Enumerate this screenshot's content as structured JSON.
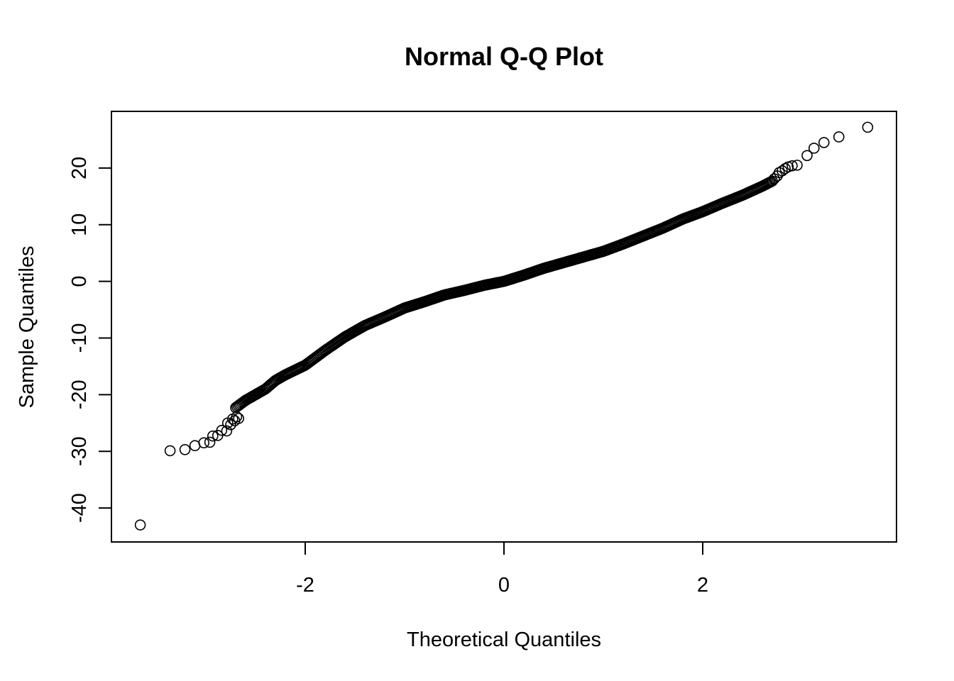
{
  "chart_data": {
    "type": "scatter",
    "title": "Normal Q-Q Plot",
    "xlabel": "Theoretical Quantiles",
    "ylabel": "Sample Quantiles",
    "xlim": [
      -3.95,
      3.95
    ],
    "ylim": [
      -46,
      30
    ],
    "x_ticks": [
      -2,
      0,
      2
    ],
    "x_tick_labels": [
      "-2",
      "0",
      "2"
    ],
    "y_ticks": [
      -40,
      -30,
      -20,
      -10,
      0,
      10,
      20
    ],
    "y_tick_labels": [
      "-40",
      "-30",
      "-20",
      "-10",
      "0",
      "10",
      "20"
    ],
    "grid": false,
    "legend": "none",
    "marker": "open-circle",
    "curve_nodes": {
      "x": [
        -2.7,
        -2.6,
        -2.5,
        -2.4,
        -2.3,
        -2.2,
        -2.0,
        -1.8,
        -1.6,
        -1.4,
        -1.2,
        -1.0,
        -0.8,
        -0.6,
        -0.4,
        -0.2,
        0.0,
        0.2,
        0.4,
        0.6,
        0.8,
        1.0,
        1.2,
        1.4,
        1.6,
        1.8,
        2.0,
        2.2,
        2.4,
        2.5,
        2.6,
        2.7
      ],
      "y": [
        -22.3,
        -21.0,
        -20.0,
        -19.0,
        -17.5,
        -16.5,
        -14.8,
        -12.2,
        -9.8,
        -7.8,
        -6.3,
        -4.7,
        -3.6,
        -2.4,
        -1.6,
        -0.7,
        0.0,
        1.1,
        2.3,
        3.3,
        4.3,
        5.3,
        6.6,
        8.0,
        9.4,
        11.0,
        12.3,
        13.8,
        15.2,
        16.0,
        16.8,
        17.7
      ]
    },
    "tail_points": [
      {
        "x": -3.66,
        "y": -43.0
      },
      {
        "x": -3.36,
        "y": -29.9
      },
      {
        "x": -3.21,
        "y": -29.7
      },
      {
        "x": -3.11,
        "y": -29.0
      },
      {
        "x": -3.02,
        "y": -28.5
      },
      {
        "x": -2.96,
        "y": -28.4
      },
      {
        "x": -2.93,
        "y": -27.3
      },
      {
        "x": -2.88,
        "y": -27.2
      },
      {
        "x": -2.84,
        "y": -26.3
      },
      {
        "x": -2.79,
        "y": -26.4
      },
      {
        "x": -2.78,
        "y": -25.0
      },
      {
        "x": -2.75,
        "y": -25.3
      },
      {
        "x": -2.73,
        "y": -24.3
      },
      {
        "x": -2.71,
        "y": -24.6
      },
      {
        "x": -2.69,
        "y": -23.9
      },
      {
        "x": -2.67,
        "y": -24.2
      },
      {
        "x": 2.72,
        "y": 18.1
      },
      {
        "x": 2.75,
        "y": 18.6
      },
      {
        "x": 2.77,
        "y": 19.2
      },
      {
        "x": 2.8,
        "y": 19.5
      },
      {
        "x": 2.83,
        "y": 19.9
      },
      {
        "x": 2.86,
        "y": 20.2
      },
      {
        "x": 2.9,
        "y": 20.4
      },
      {
        "x": 2.95,
        "y": 20.5
      },
      {
        "x": 3.05,
        "y": 22.2
      },
      {
        "x": 3.12,
        "y": 23.5
      },
      {
        "x": 3.22,
        "y": 24.5
      },
      {
        "x": 3.37,
        "y": 25.5
      },
      {
        "x": 3.66,
        "y": 27.2
      }
    ],
    "body_point_count": 420
  }
}
